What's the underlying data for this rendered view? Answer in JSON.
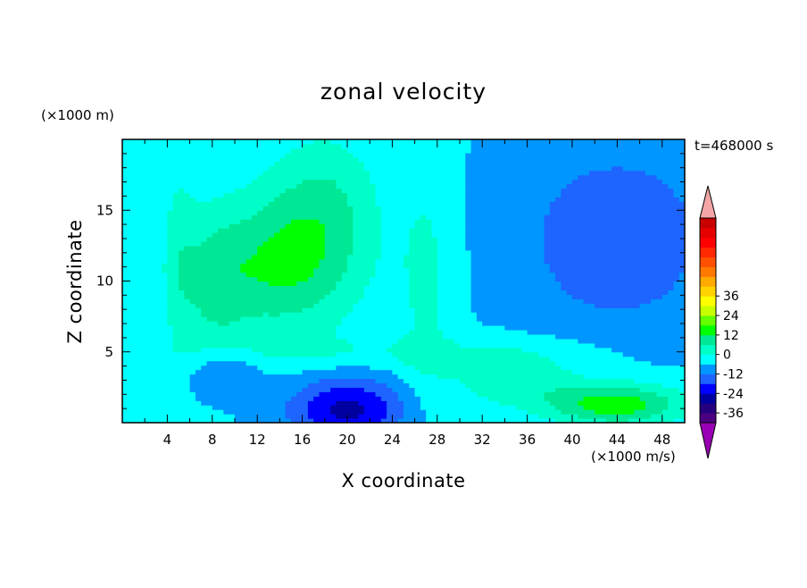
{
  "chart_data": {
    "type": "heatmap",
    "title": "zonal velocity",
    "xlabel": "X coordinate",
    "ylabel": "Z coordinate",
    "x_unit": "(×1000 m/s)",
    "y_unit": "(×1000 m)",
    "time_label": "t=468000 s",
    "xlim": [
      0,
      50
    ],
    "ylim": [
      0,
      20
    ],
    "x_ticks": [
      4,
      8,
      12,
      16,
      20,
      24,
      28,
      32,
      36,
      40,
      44,
      48
    ],
    "y_ticks": [
      5,
      10,
      15
    ],
    "colorbar": {
      "levels": [
        -42,
        -39,
        -36,
        -33,
        -30,
        -27,
        -24,
        -21,
        -18,
        -15,
        -12,
        -9,
        -6,
        -3,
        0,
        3,
        6,
        9,
        12,
        15,
        18,
        21,
        24,
        27,
        30,
        33,
        36,
        39,
        42
      ],
      "tick_values": [
        -36,
        -24,
        -12,
        0,
        12,
        24,
        36
      ],
      "tick_labels": [
        "-36",
        "-24",
        "-12",
        "0",
        "12",
        "24",
        "36"
      ],
      "colors": [
        "#4b0082",
        "#24007f",
        "#0000a0",
        "#0000ff",
        "#1e64ff",
        "#0096ff",
        "#00ffff",
        "#00ffc8",
        "#00e896",
        "#00ff00",
        "#64ff00",
        "#c8ff00",
        "#ffff00",
        "#ffd200",
        "#ffaa00",
        "#ff7800",
        "#ff5000",
        "#ff2800",
        "#ff0000",
        "#e60000",
        "#c80000"
      ],
      "under_color": "#9a00b5",
      "over_color": "#f4a6a6"
    },
    "field_description_points": [
      {
        "x": 11,
        "z": 10,
        "value": 14
      },
      {
        "x": 18,
        "z": 15,
        "value": 10
      },
      {
        "x": 20,
        "z": 1,
        "value": -22
      },
      {
        "x": 8,
        "z": 3.5,
        "value": -13
      },
      {
        "x": 43,
        "z": 13,
        "value": -15
      },
      {
        "x": 45,
        "z": 1.2,
        "value": 13
      },
      {
        "x": 26,
        "z": 10,
        "value": 1
      }
    ]
  }
}
